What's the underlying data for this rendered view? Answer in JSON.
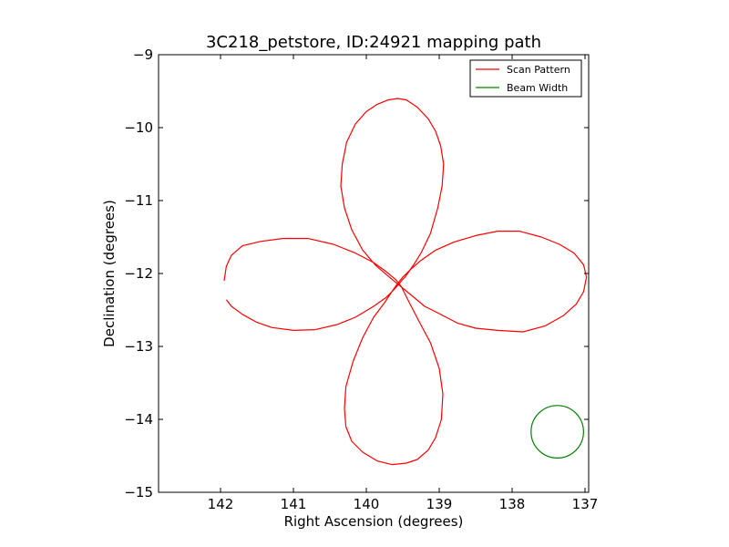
{
  "chart_data": {
    "type": "line",
    "title": "3C218_petstore, ID:24921 mapping path",
    "xlabel": "Right Ascension (degrees)",
    "ylabel": "Declination (degrees)",
    "xlim": [
      142.85,
      136.95
    ],
    "ylim": [
      -15,
      -9
    ],
    "x_reversed": true,
    "xticks": [
      142,
      141,
      140,
      139,
      138,
      137
    ],
    "yticks": [
      -9,
      -10,
      -11,
      -12,
      -13,
      -14,
      -15
    ],
    "grid": false,
    "legend": {
      "placement": "top-right",
      "entries": [
        {
          "label": "Scan Pattern",
          "color": "#ff0000"
        },
        {
          "label": "Beam Width",
          "color": "#008000"
        }
      ]
    },
    "series": [
      {
        "name": "Scan Pattern",
        "color": "#ff0000",
        "points": [
          [
            141.92,
            -12.36
          ],
          [
            141.85,
            -12.45
          ],
          [
            141.7,
            -12.56
          ],
          [
            141.5,
            -12.67
          ],
          [
            141.3,
            -12.74
          ],
          [
            141.0,
            -12.78
          ],
          [
            140.7,
            -12.77
          ],
          [
            140.4,
            -12.7
          ],
          [
            140.15,
            -12.6
          ],
          [
            139.9,
            -12.45
          ],
          [
            139.73,
            -12.33
          ],
          [
            139.62,
            -12.22
          ],
          [
            139.55,
            -12.14
          ],
          [
            139.5,
            -12.08
          ],
          [
            139.47,
            -12.05
          ],
          [
            139.42,
            -11.98
          ],
          [
            139.35,
            -11.88
          ],
          [
            139.25,
            -11.72
          ],
          [
            139.12,
            -11.45
          ],
          [
            139.02,
            -11.1
          ],
          [
            138.96,
            -10.8
          ],
          [
            138.94,
            -10.5
          ],
          [
            138.98,
            -10.25
          ],
          [
            139.05,
            -10.05
          ],
          [
            139.15,
            -9.88
          ],
          [
            139.3,
            -9.72
          ],
          [
            139.45,
            -9.62
          ],
          [
            139.57,
            -9.6
          ],
          [
            139.7,
            -9.62
          ],
          [
            139.85,
            -9.68
          ],
          [
            140.0,
            -9.78
          ],
          [
            140.15,
            -9.95
          ],
          [
            140.27,
            -10.2
          ],
          [
            140.33,
            -10.5
          ],
          [
            140.35,
            -10.8
          ],
          [
            140.3,
            -11.1
          ],
          [
            140.2,
            -11.4
          ],
          [
            140.05,
            -11.68
          ],
          [
            139.88,
            -11.88
          ],
          [
            139.72,
            -12.02
          ],
          [
            139.6,
            -12.12
          ],
          [
            139.5,
            -12.2
          ],
          [
            139.38,
            -12.3
          ],
          [
            139.2,
            -12.45
          ],
          [
            139.0,
            -12.55
          ],
          [
            138.75,
            -12.68
          ],
          [
            138.5,
            -12.75
          ],
          [
            138.2,
            -12.78
          ],
          [
            137.85,
            -12.8
          ],
          [
            137.55,
            -12.72
          ],
          [
            137.3,
            -12.58
          ],
          [
            137.12,
            -12.42
          ],
          [
            137.02,
            -12.25
          ],
          [
            136.98,
            -12.05
          ],
          [
            137.02,
            -11.88
          ],
          [
            137.15,
            -11.72
          ],
          [
            137.35,
            -11.6
          ],
          [
            137.6,
            -11.5
          ],
          [
            137.9,
            -11.42
          ],
          [
            138.2,
            -11.42
          ],
          [
            138.5,
            -11.48
          ],
          [
            138.8,
            -11.57
          ],
          [
            139.05,
            -11.68
          ],
          [
            139.25,
            -11.82
          ],
          [
            139.4,
            -11.95
          ],
          [
            139.5,
            -12.05
          ],
          [
            139.58,
            -12.15
          ],
          [
            139.65,
            -12.25
          ],
          [
            139.75,
            -12.4
          ],
          [
            139.9,
            -12.6
          ],
          [
            140.05,
            -12.88
          ],
          [
            140.18,
            -13.2
          ],
          [
            140.28,
            -13.55
          ],
          [
            140.3,
            -13.85
          ],
          [
            140.28,
            -14.1
          ],
          [
            140.2,
            -14.3
          ],
          [
            140.05,
            -14.45
          ],
          [
            139.85,
            -14.57
          ],
          [
            139.65,
            -14.62
          ],
          [
            139.45,
            -14.6
          ],
          [
            139.3,
            -14.55
          ],
          [
            139.15,
            -14.42
          ],
          [
            139.05,
            -14.25
          ],
          [
            138.97,
            -14.0
          ],
          [
            138.95,
            -13.65
          ],
          [
            139.0,
            -13.3
          ],
          [
            139.12,
            -12.95
          ],
          [
            139.28,
            -12.65
          ],
          [
            139.42,
            -12.38
          ],
          [
            139.52,
            -12.18
          ],
          [
            139.6,
            -12.08
          ],
          [
            139.72,
            -11.98
          ],
          [
            139.9,
            -11.85
          ],
          [
            140.15,
            -11.72
          ],
          [
            140.45,
            -11.6
          ],
          [
            140.8,
            -11.52
          ],
          [
            141.15,
            -11.52
          ],
          [
            141.45,
            -11.56
          ],
          [
            141.7,
            -11.62
          ],
          [
            141.85,
            -11.75
          ],
          [
            141.92,
            -11.9
          ],
          [
            141.95,
            -12.1
          ]
        ]
      },
      {
        "name": "Beam Width",
        "color": "#008000",
        "shape": "circle",
        "center": [
          137.38,
          -14.17
        ],
        "radius_deg": 0.36
      }
    ]
  }
}
